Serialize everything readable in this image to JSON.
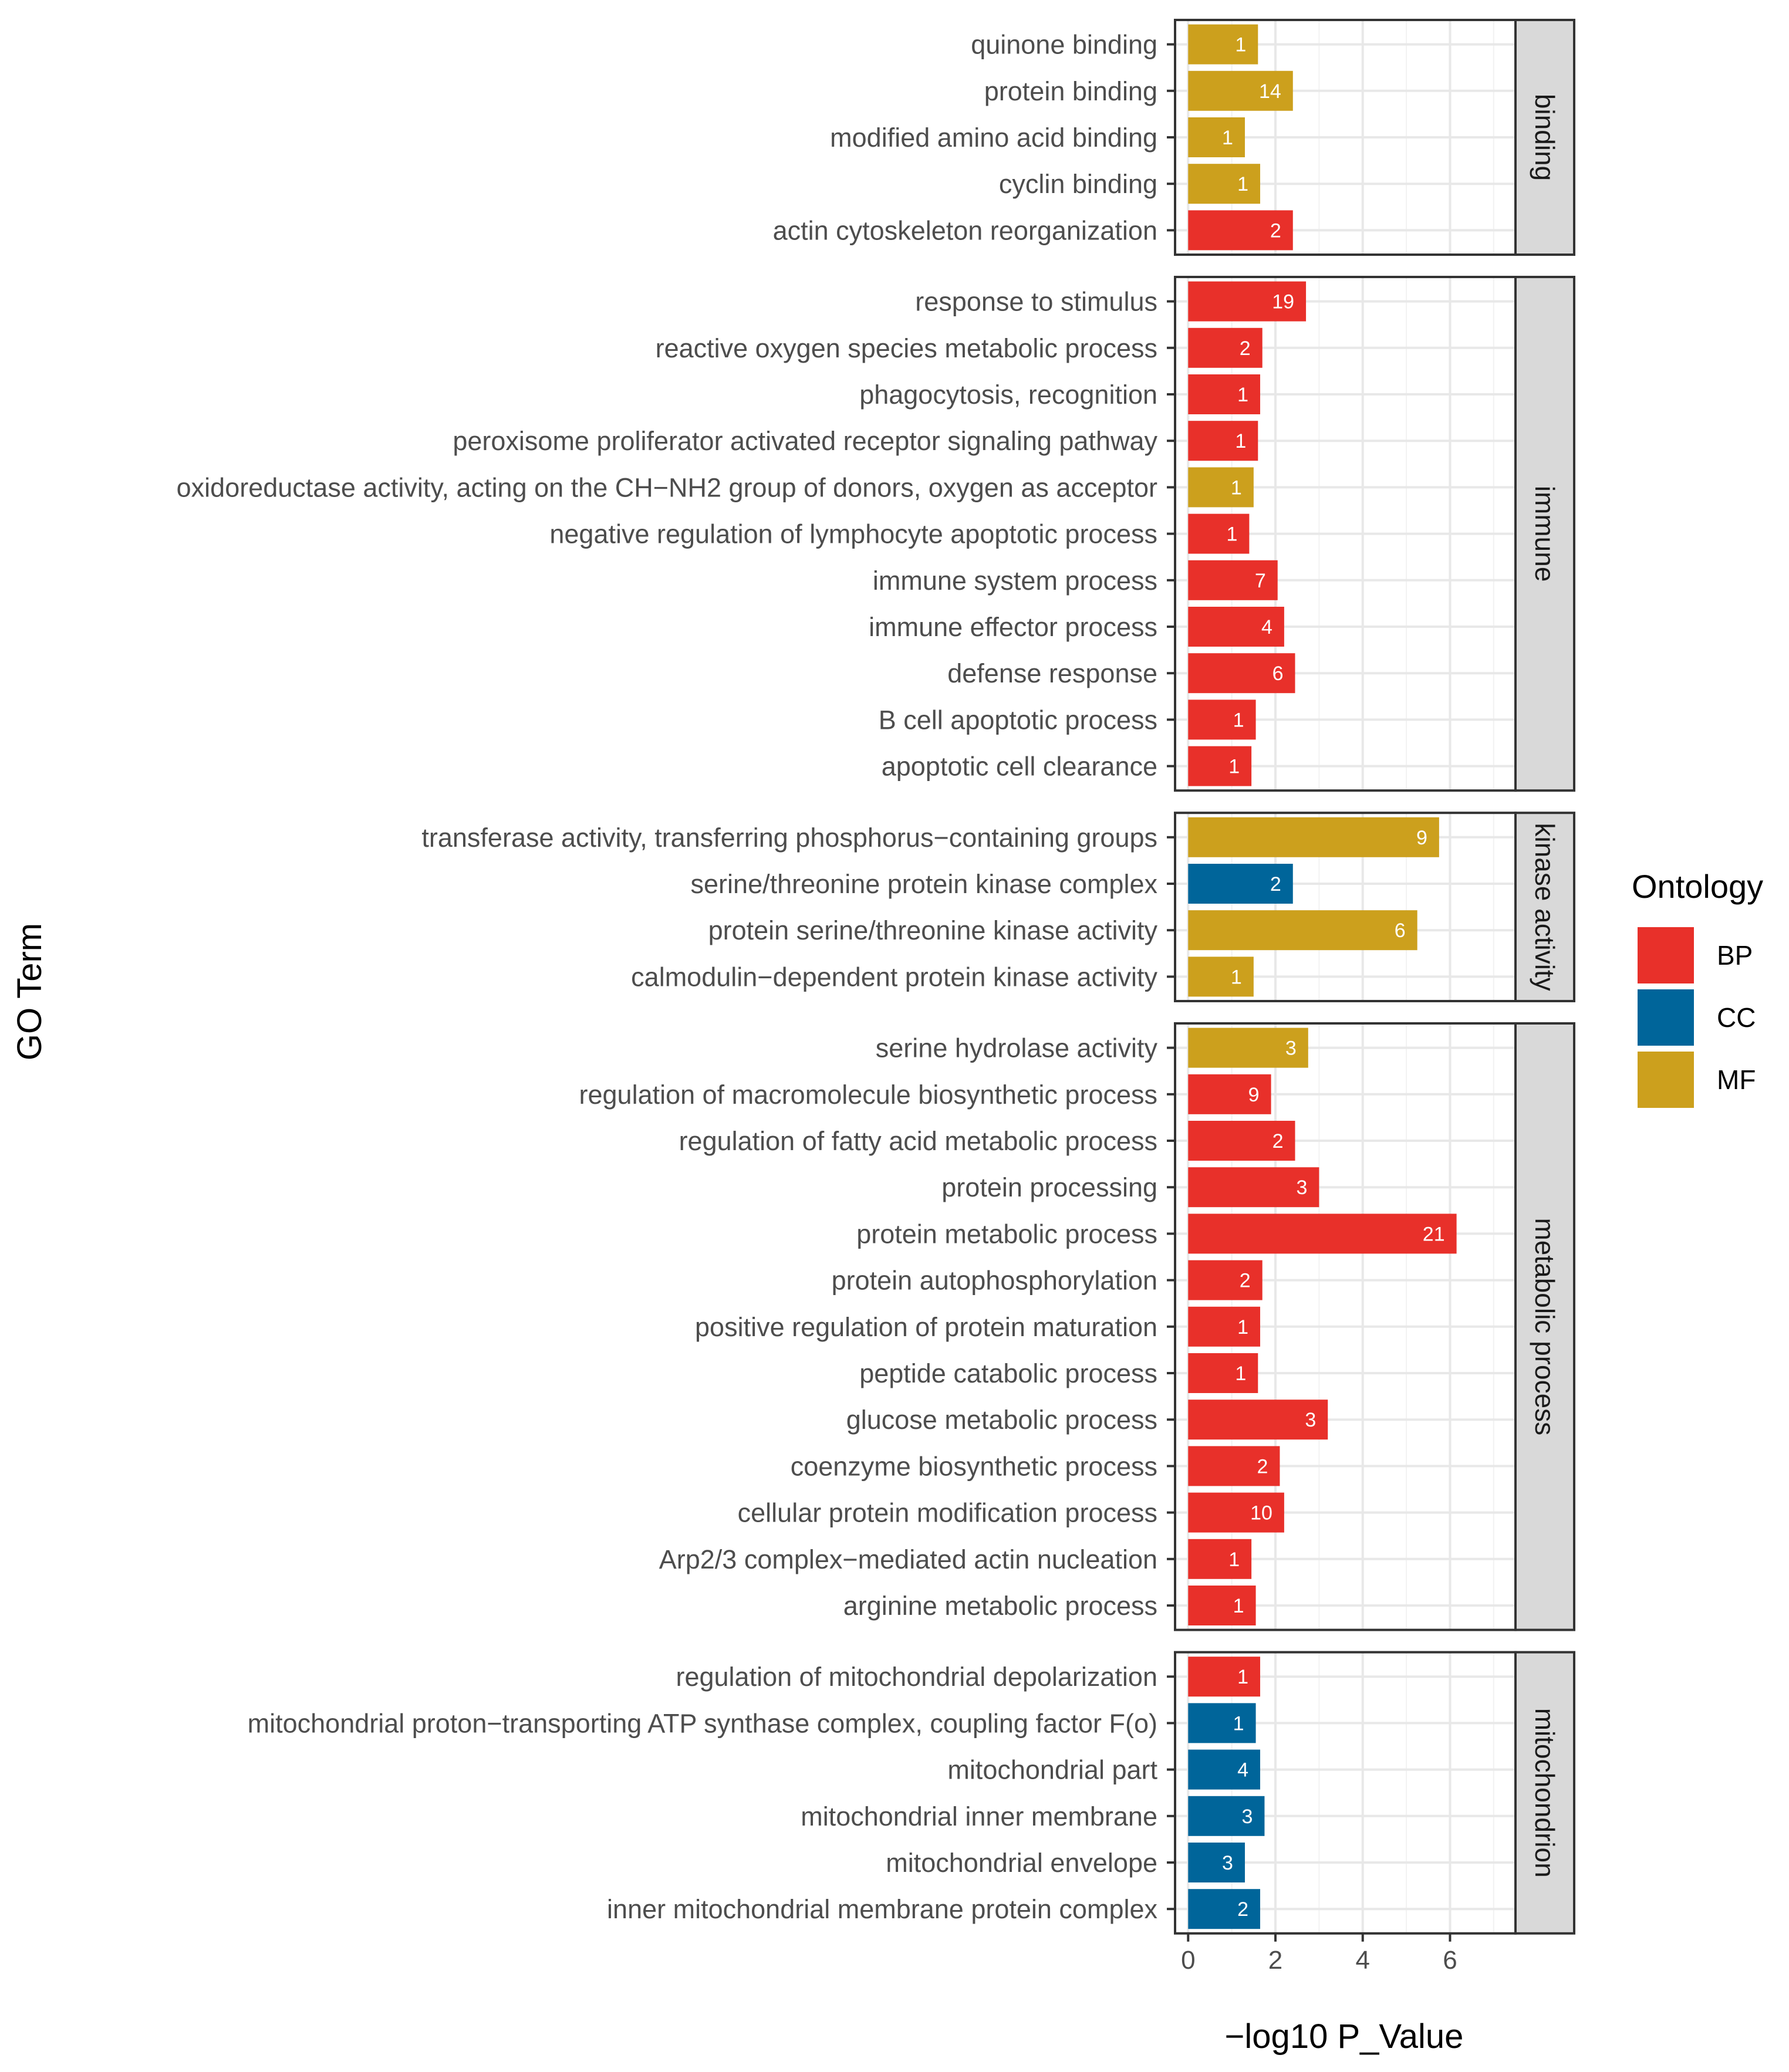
{
  "chart_data": {
    "type": "bar",
    "orientation": "horizontal",
    "xlabel": "−log10 P_Value",
    "ylabel": "GO Term",
    "xlim": [
      -0.3,
      7.5
    ],
    "xticks": [
      0,
      2,
      4,
      6
    ],
    "grid": true,
    "legend": {
      "title": "Ontology",
      "position": "right",
      "items": [
        {
          "name": "BP",
          "color": "#e8302a"
        },
        {
          "name": "CC",
          "color": "#00659a"
        },
        {
          "name": "MF",
          "color": "#cca01d"
        }
      ]
    },
    "facets": [
      {
        "label": "binding",
        "rows": [
          {
            "term": "quinone binding",
            "value": 1.6,
            "count": "1",
            "ontology": "MF"
          },
          {
            "term": "protein binding",
            "value": 2.4,
            "count": "14",
            "ontology": "MF"
          },
          {
            "term": "modified amino acid binding",
            "value": 1.3,
            "count": "1",
            "ontology": "MF"
          },
          {
            "term": "cyclin binding",
            "value": 1.65,
            "count": "1",
            "ontology": "MF"
          },
          {
            "term": "actin cytoskeleton reorganization",
            "value": 2.4,
            "count": "2",
            "ontology": "BP"
          }
        ]
      },
      {
        "label": "immune",
        "rows": [
          {
            "term": "response to stimulus",
            "value": 2.7,
            "count": "19",
            "ontology": "BP"
          },
          {
            "term": "reactive oxygen species metabolic process",
            "value": 1.7,
            "count": "2",
            "ontology": "BP"
          },
          {
            "term": "phagocytosis, recognition",
            "value": 1.65,
            "count": "1",
            "ontology": "BP"
          },
          {
            "term": "peroxisome proliferator activated receptor signaling pathway",
            "value": 1.6,
            "count": "1",
            "ontology": "BP"
          },
          {
            "term": "oxidoreductase activity, acting on the CH−NH2 group of donors, oxygen as acceptor",
            "value": 1.5,
            "count": "1",
            "ontology": "MF"
          },
          {
            "term": "negative regulation of lymphocyte apoptotic process",
            "value": 1.4,
            "count": "1",
            "ontology": "BP"
          },
          {
            "term": "immune system process",
            "value": 2.05,
            "count": "7",
            "ontology": "BP"
          },
          {
            "term": "immune effector process",
            "value": 2.2,
            "count": "4",
            "ontology": "BP"
          },
          {
            "term": "defense response",
            "value": 2.45,
            "count": "6",
            "ontology": "BP"
          },
          {
            "term": "B cell apoptotic process",
            "value": 1.55,
            "count": "1",
            "ontology": "BP"
          },
          {
            "term": "apoptotic cell clearance",
            "value": 1.45,
            "count": "1",
            "ontology": "BP"
          }
        ]
      },
      {
        "label": "kinase activity",
        "rows": [
          {
            "term": "transferase activity, transferring phosphorus−containing groups",
            "value": 5.75,
            "count": "9",
            "ontology": "MF"
          },
          {
            "term": "serine/threonine protein kinase complex",
            "value": 2.4,
            "count": "2",
            "ontology": "CC"
          },
          {
            "term": "protein serine/threonine kinase activity",
            "value": 5.25,
            "count": "6",
            "ontology": "MF"
          },
          {
            "term": "calmodulin−dependent protein kinase activity",
            "value": 1.5,
            "count": "1",
            "ontology": "MF"
          }
        ]
      },
      {
        "label": "metabolic process",
        "rows": [
          {
            "term": "serine hydrolase activity",
            "value": 2.75,
            "count": "3",
            "ontology": "MF"
          },
          {
            "term": "regulation of macromolecule biosynthetic process",
            "value": 1.9,
            "count": "9",
            "ontology": "BP"
          },
          {
            "term": "regulation of fatty acid metabolic process",
            "value": 2.45,
            "count": "2",
            "ontology": "BP"
          },
          {
            "term": "protein processing",
            "value": 3.0,
            "count": "3",
            "ontology": "BP"
          },
          {
            "term": "protein metabolic process",
            "value": 6.15,
            "count": "21",
            "ontology": "BP"
          },
          {
            "term": "protein autophosphorylation",
            "value": 1.7,
            "count": "2",
            "ontology": "BP"
          },
          {
            "term": "positive regulation of protein maturation",
            "value": 1.65,
            "count": "1",
            "ontology": "BP"
          },
          {
            "term": "peptide catabolic process",
            "value": 1.6,
            "count": "1",
            "ontology": "BP"
          },
          {
            "term": "glucose metabolic process",
            "value": 3.2,
            "count": "3",
            "ontology": "BP"
          },
          {
            "term": "coenzyme biosynthetic process",
            "value": 2.1,
            "count": "2",
            "ontology": "BP"
          },
          {
            "term": "cellular protein modification process",
            "value": 2.2,
            "count": "10",
            "ontology": "BP"
          },
          {
            "term": "Arp2/3 complex−mediated actin nucleation",
            "value": 1.45,
            "count": "1",
            "ontology": "BP"
          },
          {
            "term": "arginine metabolic process",
            "value": 1.55,
            "count": "1",
            "ontology": "BP"
          }
        ]
      },
      {
        "label": "mitochondrion",
        "rows": [
          {
            "term": "regulation of mitochondrial depolarization",
            "value": 1.65,
            "count": "1",
            "ontology": "BP"
          },
          {
            "term": "mitochondrial proton−transporting ATP synthase complex, coupling factor F(o)",
            "value": 1.55,
            "count": "1",
            "ontology": "CC"
          },
          {
            "term": "mitochondrial part",
            "value": 1.65,
            "count": "4",
            "ontology": "CC"
          },
          {
            "term": "mitochondrial inner membrane",
            "value": 1.75,
            "count": "3",
            "ontology": "CC"
          },
          {
            "term": "mitochondrial envelope",
            "value": 1.3,
            "count": "3",
            "ontology": "CC"
          },
          {
            "term": "inner mitochondrial membrane protein complex",
            "value": 1.65,
            "count": "2",
            "ontology": "CC"
          }
        ]
      }
    ]
  }
}
